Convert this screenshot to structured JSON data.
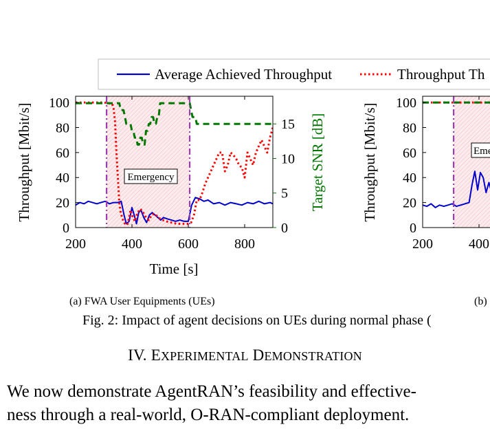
{
  "legend": {
    "entries": [
      {
        "name": "Average Achieved Throughput",
        "color": "#0000cc",
        "style": "solid"
      },
      {
        "name": "Throughput Th",
        "color": "#ff0000",
        "style": "dotted"
      }
    ]
  },
  "chart_data": [
    {
      "type": "line",
      "panel": "a",
      "xlabel": "Time [s]",
      "ylabel": "Throughput [Mbit/s]",
      "y2label": "Target SNR [dB]",
      "xlim": [
        200,
        900
      ],
      "ylim": [
        0,
        105
      ],
      "y2lim": [
        0,
        19
      ],
      "xticks": [
        200,
        400,
        600,
        800
      ],
      "yticks": [
        0,
        20,
        40,
        60,
        80,
        100
      ],
      "y2ticks": [
        0,
        5,
        10,
        15
      ],
      "annotation": "Emergency",
      "emergency_window": [
        310,
        605
      ],
      "series": [
        {
          "name": "Average Achieved Throughput",
          "color": "#0000cc",
          "axis": "left",
          "x": [
            200,
            215,
            230,
            245,
            260,
            275,
            290,
            305,
            320,
            335,
            350,
            362,
            372,
            380,
            390,
            400,
            408,
            416,
            424,
            432,
            442,
            452,
            462,
            472,
            482,
            492,
            502,
            512,
            525,
            540,
            555,
            570,
            585,
            600,
            612,
            625,
            640,
            655,
            670,
            690,
            710,
            730,
            750,
            770,
            790,
            810,
            830,
            850,
            870,
            890,
            900
          ],
          "y": [
            18,
            20,
            19,
            21,
            20,
            19,
            20,
            21,
            19,
            20,
            20,
            21,
            10,
            3,
            5,
            16,
            10,
            3,
            12,
            14,
            8,
            4,
            10,
            12,
            10,
            8,
            6,
            8,
            7,
            6,
            5,
            6,
            5,
            5,
            18,
            24,
            23,
            21,
            22,
            19,
            20,
            18,
            20,
            19,
            18,
            20,
            19,
            21,
            19,
            20,
            19
          ]
        },
        {
          "name": "Throughput Th",
          "color": "#ff0000",
          "axis": "left",
          "x": [
            200,
            300,
            330,
            335,
            340,
            345,
            350,
            355,
            360,
            365,
            370,
            375,
            380,
            385,
            390,
            395,
            400,
            410,
            420,
            430,
            440,
            450,
            460,
            470,
            480,
            490,
            500,
            520,
            540,
            560,
            580,
            600,
            610,
            620,
            630,
            640,
            650,
            660,
            670,
            680,
            690,
            700,
            710,
            720,
            730,
            740,
            750,
            760,
            770,
            780,
            790,
            800,
            810,
            820,
            830,
            840,
            850,
            860,
            870,
            880,
            890,
            900
          ],
          "y": [
            100,
            100,
            99,
            95,
            85,
            60,
            40,
            20,
            12,
            8,
            5,
            3,
            2,
            3,
            8,
            14,
            10,
            5,
            12,
            15,
            12,
            8,
            6,
            10,
            11,
            9,
            7,
            5,
            4,
            3,
            3,
            3,
            4,
            10,
            22,
            22,
            28,
            35,
            40,
            45,
            50,
            55,
            60,
            60,
            45,
            50,
            60,
            58,
            55,
            50,
            48,
            40,
            60,
            55,
            50,
            60,
            65,
            70,
            65,
            60,
            72,
            80
          ]
        },
        {
          "name": "Target SNR",
          "color": "#007700",
          "axis": "right",
          "x": [
            200,
            320,
            340,
            350,
            355,
            360,
            370,
            375,
            380,
            385,
            395,
            400,
            405,
            410,
            415,
            420,
            425,
            430,
            435,
            440,
            445,
            450,
            455,
            460,
            465,
            470,
            475,
            480,
            485,
            490,
            495,
            500,
            510,
            600,
            605,
            610,
            615,
            620,
            625,
            630,
            640,
            900
          ],
          "y": [
            18,
            18,
            18,
            18,
            18,
            17,
            17,
            16,
            15,
            15,
            15,
            14,
            14,
            13,
            13,
            12,
            12,
            13,
            13,
            12,
            12,
            14,
            14,
            15,
            15,
            16,
            16,
            15,
            15,
            16,
            16,
            18,
            18,
            18,
            18,
            17,
            16,
            16,
            16,
            15,
            15,
            15
          ]
        }
      ]
    },
    {
      "type": "line",
      "panel": "b",
      "xlabel": "",
      "ylabel": "Throughput [Mbit/s]",
      "annotation": "Eme",
      "xlim": [
        200,
        900
      ],
      "ylim": [
        0,
        105
      ],
      "xticks": [
        200,
        400
      ],
      "yticks": [
        0,
        20,
        40,
        60,
        80,
        100
      ],
      "series": [
        {
          "name": "Average Achieved Throughput",
          "color": "#0000cc",
          "axis": "left",
          "x": [
            200,
            215,
            230,
            245,
            260,
            275,
            290,
            305,
            320,
            335,
            350,
            365,
            375,
            385,
            395,
            405,
            415,
            425,
            435,
            445,
            455
          ],
          "y": [
            18,
            17,
            19,
            16,
            18,
            17,
            18,
            19,
            17,
            18,
            19,
            20,
            34,
            45,
            30,
            44,
            40,
            28,
            36,
            28,
            38
          ]
        },
        {
          "name": "Throughput Th",
          "color": "#ff0000",
          "axis": "left",
          "x": [
            200,
            455
          ],
          "y": [
            100,
            100
          ]
        },
        {
          "name": "Target SNR",
          "color": "#007700",
          "axis": "right",
          "x": [
            200,
            455
          ],
          "y": [
            100,
            100
          ]
        }
      ]
    }
  ],
  "captions": {
    "sub_a": "(a) FWA User Equipments (UEs)",
    "sub_b": "(b)",
    "figure": "Fig. 2: Impact of agent decisions on UEs during normal phase ("
  },
  "section": {
    "number": "IV.",
    "title": "Experimental Demonstration"
  },
  "body_text": [
    "We now demonstrate AgentRAN’s feasibility and effective-",
    "ness through a real-world, O-RAN-compliant deployment."
  ]
}
